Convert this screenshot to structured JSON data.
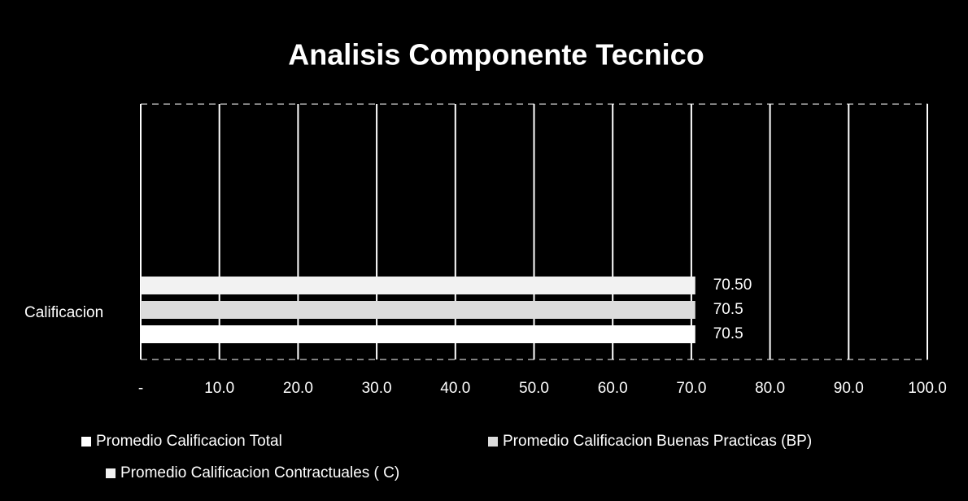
{
  "chart_data": {
    "type": "bar",
    "orientation": "horizontal",
    "title": "Analisis Componente Tecnico",
    "categories": [
      "Calificacion"
    ],
    "series": [
      {
        "name": "Promedio Calificacion Total",
        "color": "#ffffff",
        "values": [
          70.5
        ],
        "value_labels": [
          "70.5"
        ]
      },
      {
        "name": "Promedio Calificacion Buenas Practicas  (BP)",
        "color": "#dcdcdc",
        "values": [
          70.5
        ],
        "value_labels": [
          "70.5"
        ]
      },
      {
        "name": "Promedio Calificacion Contractuales ( C)",
        "color": "#f2f2f2",
        "values": [
          70.5
        ],
        "value_labels": [
          "70.50"
        ]
      }
    ],
    "xlim": [
      0,
      100
    ],
    "xticks": [
      {
        "value": 0,
        "label": "-"
      },
      {
        "value": 10,
        "label": "10.0"
      },
      {
        "value": 20,
        "label": "20.0"
      },
      {
        "value": 30,
        "label": "30.0"
      },
      {
        "value": 40,
        "label": "40.0"
      },
      {
        "value": 50,
        "label": "50.0"
      },
      {
        "value": 60,
        "label": "60.0"
      },
      {
        "value": 70,
        "label": "70.0"
      },
      {
        "value": 80,
        "label": "80.0"
      },
      {
        "value": 90,
        "label": "90.0"
      },
      {
        "value": 100,
        "label": "100.0"
      }
    ],
    "grid": true,
    "legend": "bottom"
  }
}
